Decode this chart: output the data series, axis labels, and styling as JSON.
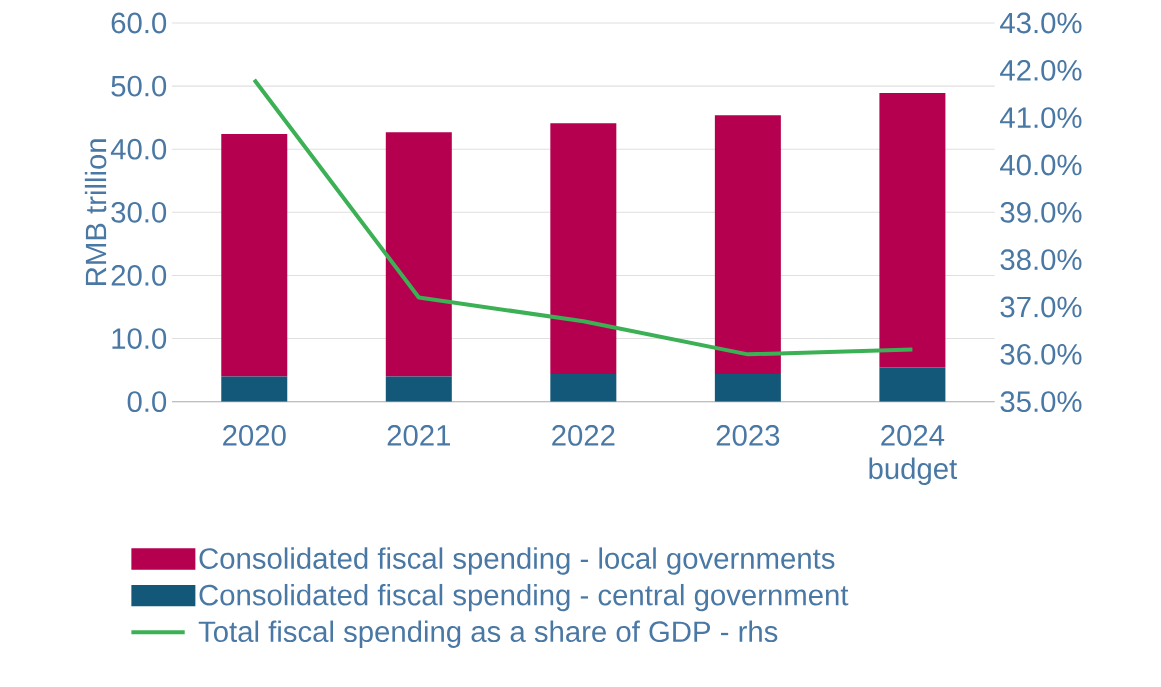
{
  "chart_data": {
    "type": "bar",
    "stacked": true,
    "ylabel": "RMB trillion",
    "categories": [
      "2020",
      "2021",
      "2022",
      "2023",
      "2024 budget"
    ],
    "series": [
      {
        "name": "Consolidated fiscal spending - central government",
        "color": "#135779",
        "values": [
          4.0,
          4.0,
          4.4,
          4.4,
          5.4
        ]
      },
      {
        "name": "Consolidated fiscal spending - local governments",
        "color": "#b5004f",
        "values": [
          38.4,
          38.7,
          39.7,
          41.0,
          43.5
        ]
      },
      {
        "name": "Total fiscal spending as a share of GDP - rhs",
        "type": "line",
        "axis": "y2",
        "color": "#3cb054",
        "values": [
          41.8,
          37.2,
          36.7,
          36.0,
          36.1
        ]
      }
    ],
    "ylim": [
      0,
      60
    ],
    "yticks": [
      {
        "value": 0,
        "label": "0.0"
      },
      {
        "value": 10,
        "label": "10.0"
      },
      {
        "value": 20,
        "label": "20.0"
      },
      {
        "value": 30,
        "label": "30.0"
      },
      {
        "value": 40,
        "label": "40.0"
      },
      {
        "value": 50,
        "label": "50.0"
      },
      {
        "value": 60,
        "label": "60.0"
      }
    ],
    "y2lim": [
      35,
      43
    ],
    "y2ticks": [
      {
        "value": 35,
        "label": "35.0%"
      },
      {
        "value": 36,
        "label": "36.0%"
      },
      {
        "value": 37,
        "label": "37.0%"
      },
      {
        "value": 38,
        "label": "38.0%"
      },
      {
        "value": 39,
        "label": "39.0%"
      },
      {
        "value": 40,
        "label": "40.0%"
      },
      {
        "value": 41,
        "label": "41.0%"
      },
      {
        "value": 42,
        "label": "42.0%"
      },
      {
        "value": 43,
        "label": "43.0%"
      }
    ],
    "grid": "y",
    "legend": "bottom",
    "marker": "none",
    "line_style": "solid"
  }
}
